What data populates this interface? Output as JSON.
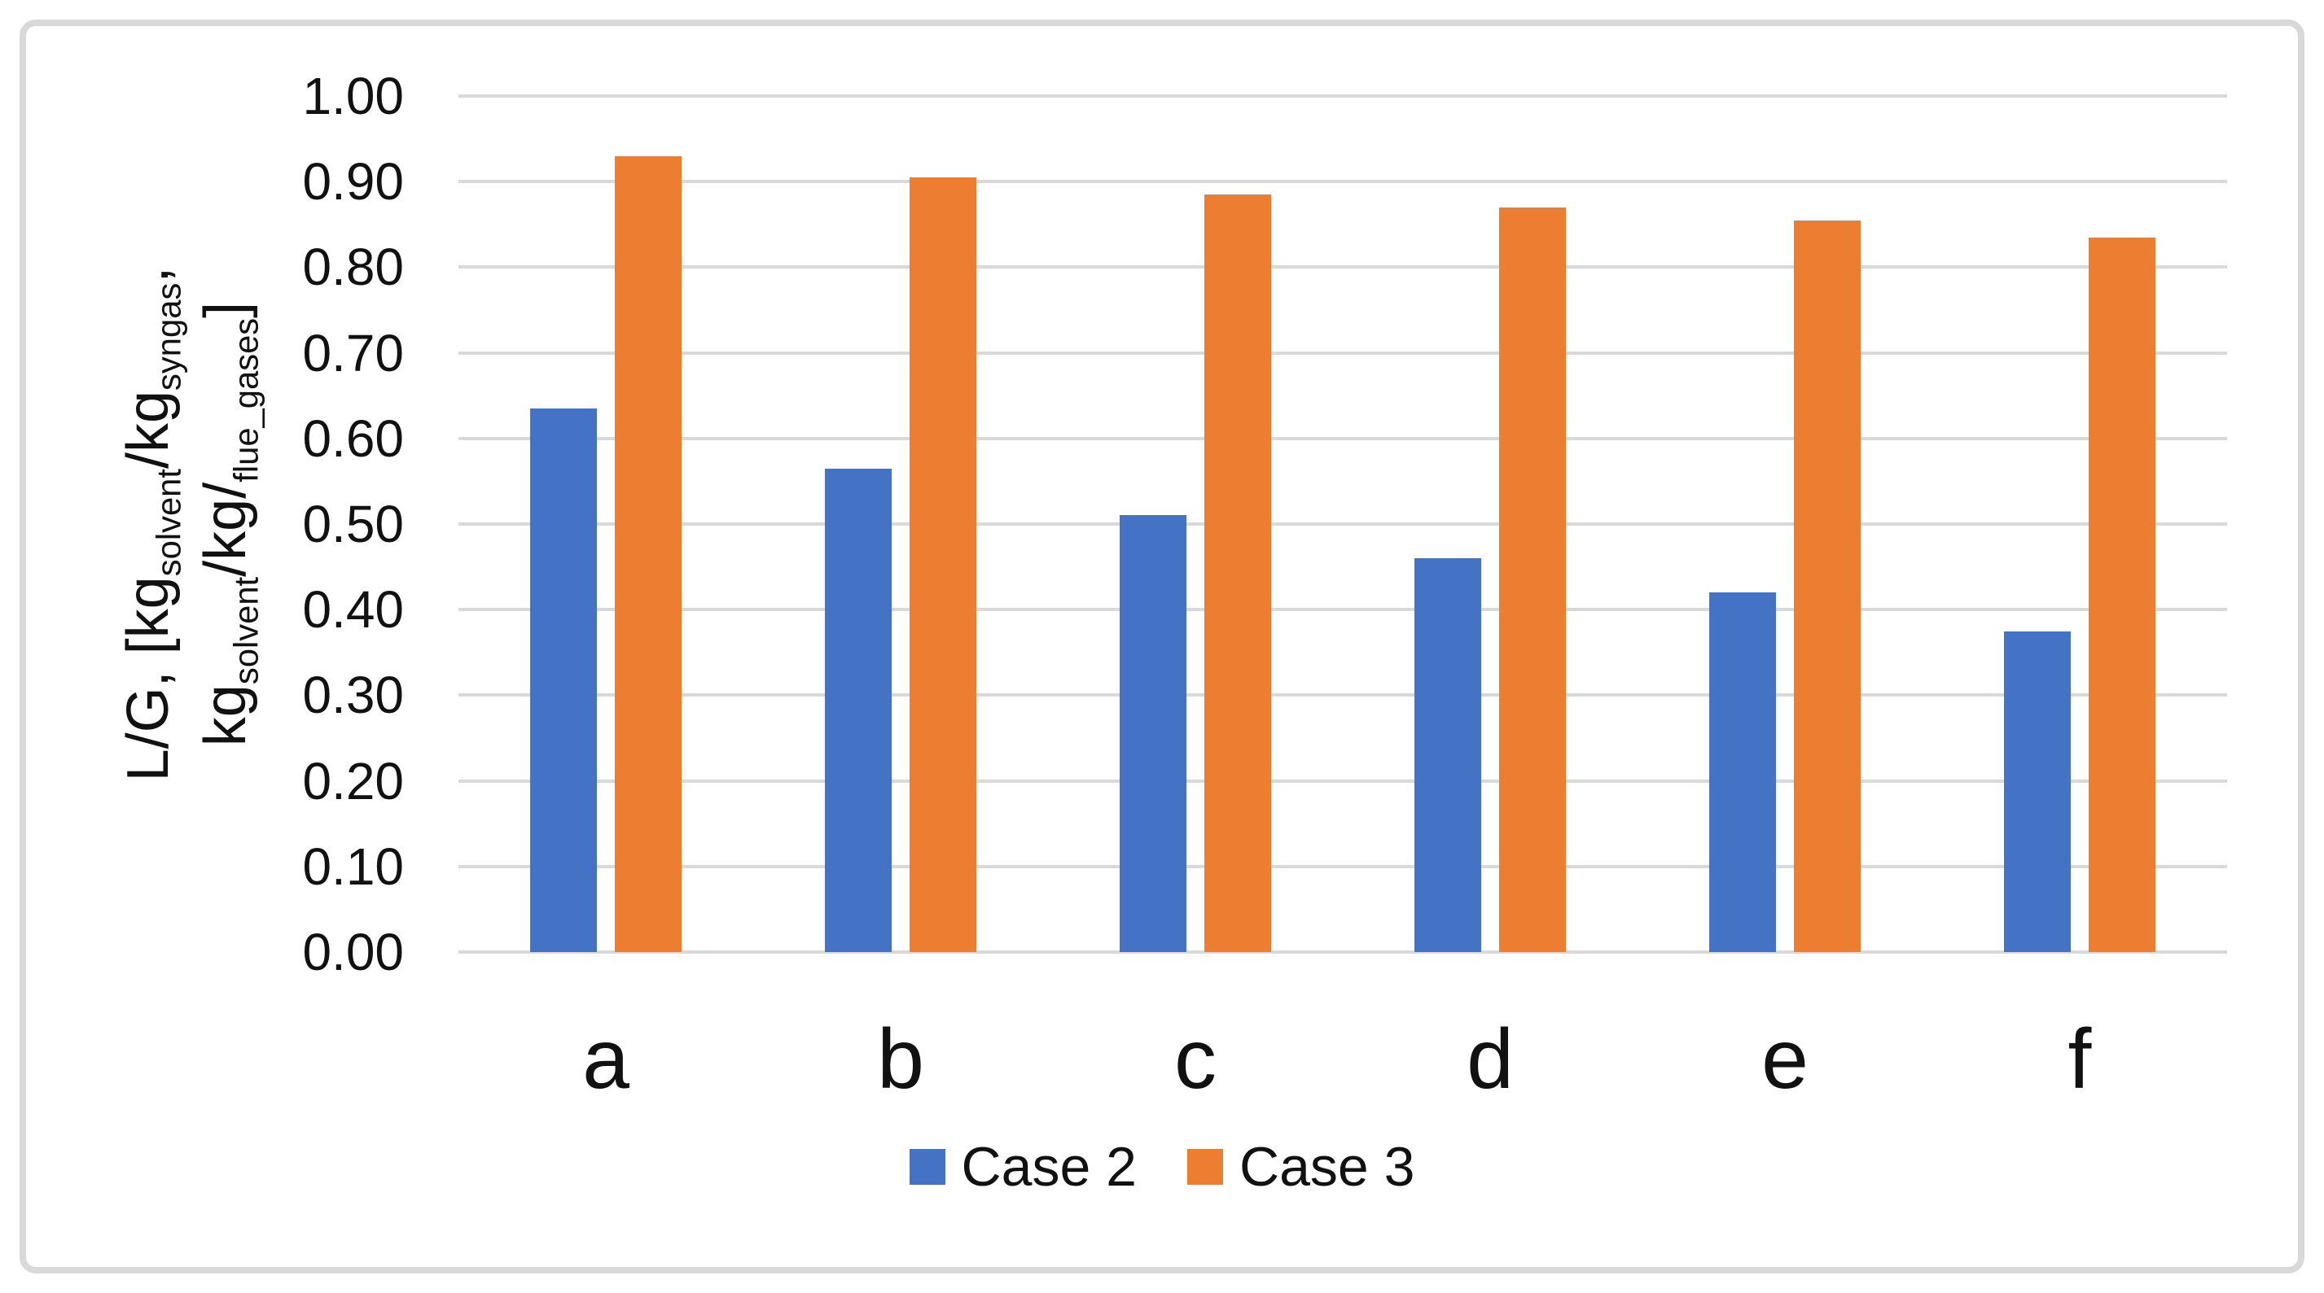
{
  "figure": {
    "background": "#ffffff",
    "border_color": "#d9d9d9",
    "text_color": "#111111"
  },
  "chart_data": {
    "type": "bar",
    "title": "",
    "categories": [
      "a",
      "b",
      "c",
      "d",
      "e",
      "f"
    ],
    "series": [
      {
        "name": "Case 2",
        "color": "#4472C4",
        "values": [
          0.635,
          0.565,
          0.51,
          0.46,
          0.42,
          0.375
        ]
      },
      {
        "name": "Case 3",
        "color": "#ED7D31",
        "values": [
          0.93,
          0.905,
          0.885,
          0.87,
          0.855,
          0.835
        ]
      }
    ],
    "xlabel": "",
    "ylabel_lines": [
      [
        {
          "text": "L/G, [kg"
        },
        {
          "text": "solvent",
          "sub": true
        },
        {
          "text": "/kg"
        },
        {
          "text": "syngas",
          "sub": true
        },
        {
          "text": ","
        }
      ],
      [
        {
          "text": "kg"
        },
        {
          "text": "solvent",
          "sub": true
        },
        {
          "text": "/kg/"
        },
        {
          "text": "flue_gases",
          "sub": true
        },
        {
          "text": "]"
        }
      ]
    ],
    "ylim": [
      0,
      1
    ],
    "ytick_step": 0.1,
    "yticks": [
      "0.00",
      "0.10",
      "0.20",
      "0.30",
      "0.40",
      "0.50",
      "0.60",
      "0.70",
      "0.80",
      "0.90",
      "1.00"
    ],
    "grid": "horizontal",
    "gridline_color": "#d9d9d9",
    "legend_position": "bottom",
    "legend": [
      "Case 2",
      "Case 3"
    ]
  }
}
